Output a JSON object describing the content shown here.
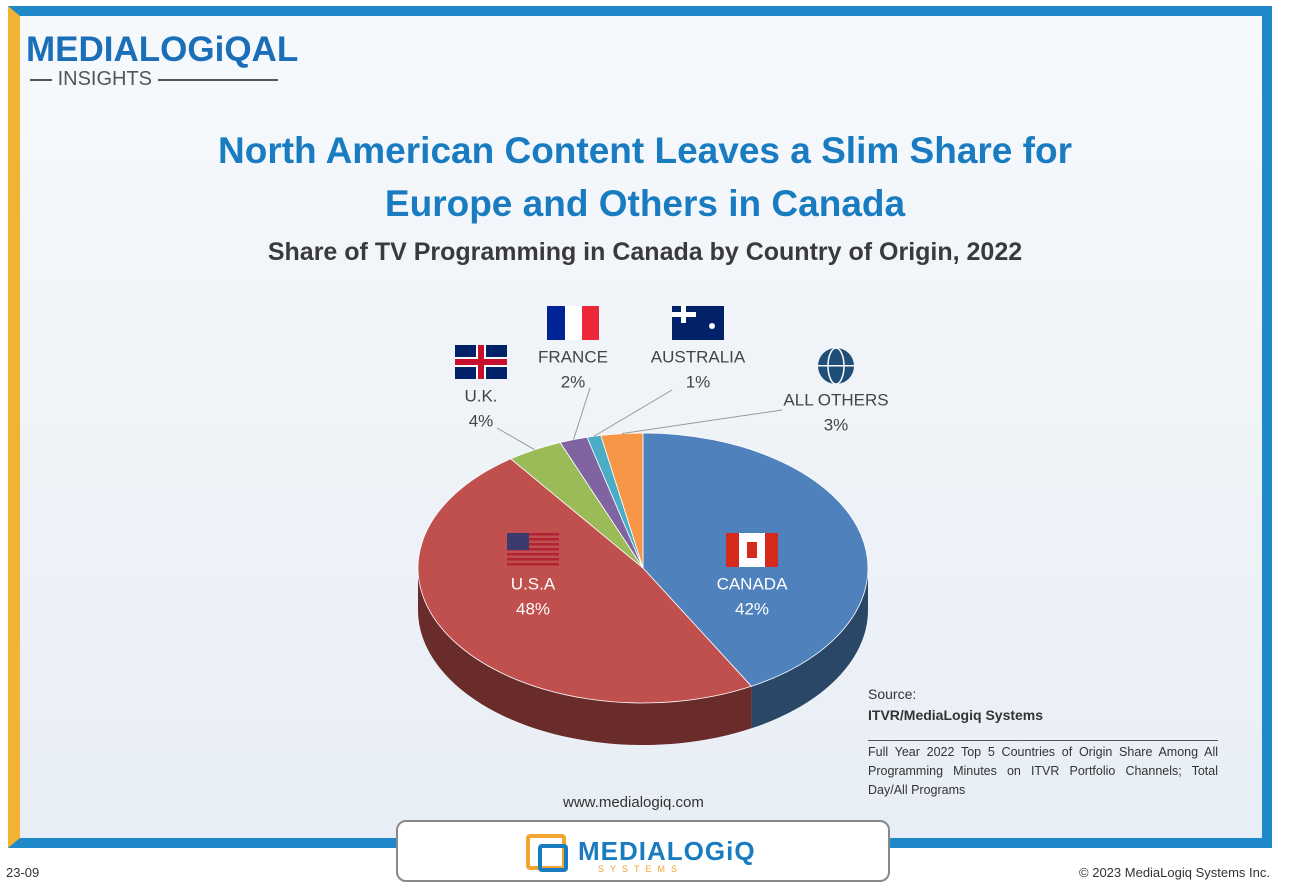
{
  "logo": {
    "name": "MEDIALOGiQAL",
    "tagline": "INSIGHTS"
  },
  "chart_data": {
    "type": "pie",
    "title": "North American Content Leaves a Slim Share for Europe and Others in Canada",
    "subtitle": "Share of TV Programming in Canada by Country of Origin, 2022",
    "categories": [
      "CANADA",
      "U.S.A",
      "U.K.",
      "FRANCE",
      "AUSTRALIA",
      "ALL OTHERS"
    ],
    "values": [
      42,
      48,
      4,
      2,
      1,
      3
    ],
    "value_labels": [
      "42%",
      "48%",
      "4%",
      "2%",
      "1%",
      "3%"
    ],
    "colors": [
      "#4f81bd",
      "#c0504d",
      "#9bbb59",
      "#8064a2",
      "#4bacc6",
      "#f79646"
    ]
  },
  "source": {
    "label": "Source:",
    "name": "ITVR/MediaLogiq Systems",
    "note": "Full Year 2022 Top 5 Countries of Origin Share Among All Programming Minutes on ITVR Portfolio Channels; Total Day/All Programs"
  },
  "footer": {
    "website": "www.medialogiq.com",
    "code": "23-09",
    "copyright": "© 2023 MediaLogiq Systems Inc.",
    "brand": "MEDIALOGiQ",
    "brand_sub": "SYSTEMS"
  }
}
